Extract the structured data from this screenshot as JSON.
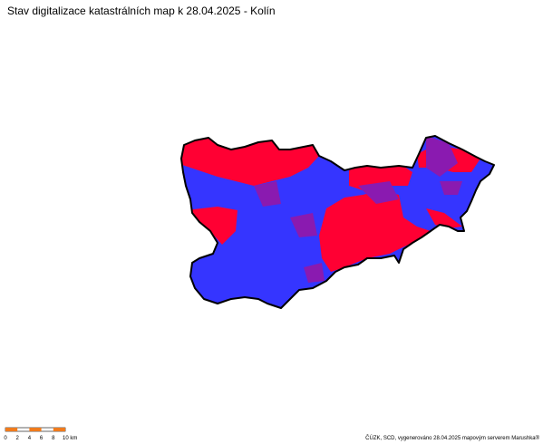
{
  "header": {
    "title": "Stav digitalizace katastrálních map k 28.04.2025 - Kolín"
  },
  "scale": {
    "labels": [
      "0",
      "2",
      "4",
      "6",
      "8",
      "10 km"
    ]
  },
  "footer": {
    "credit": "ČÚZK, SCD, vygenerováno 28.04.2025 mapovým serverem Marushka®"
  }
}
